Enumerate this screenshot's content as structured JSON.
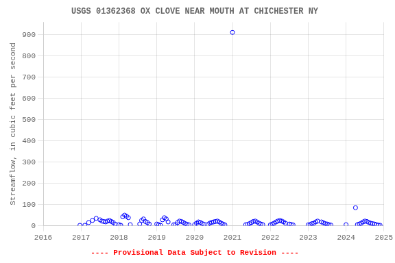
{
  "chart_data": {
    "type": "scatter",
    "title": "USGS 01362368 OX CLOVE NEAR MOUTH AT CHICHESTER NY",
    "ylabel": "Streamflow, in cubic feet per second",
    "annotations": [
      {
        "text": "---- Provisional Data Subject to Revision ----",
        "color": "#ff0000"
      }
    ],
    "xlim": [
      2016,
      2025
    ],
    "ylim": [
      0,
      960
    ],
    "xticks": [
      2016,
      2017,
      2018,
      2019,
      2020,
      2021,
      2022,
      2023,
      2024,
      2025
    ],
    "yticks": [
      0,
      100,
      200,
      300,
      400,
      500,
      600,
      700,
      800,
      900
    ],
    "grid": true,
    "color": "#0000ff",
    "marker": "circle",
    "x": [
      2016.97,
      2017.1,
      2017.2,
      2017.3,
      2017.4,
      2017.5,
      2017.55,
      2017.6,
      2017.65,
      2017.7,
      2017.75,
      2017.8,
      2017.85,
      2017.9,
      2018.0,
      2018.05,
      2018.1,
      2018.15,
      2018.2,
      2018.25,
      2018.3,
      2018.55,
      2018.6,
      2018.65,
      2018.7,
      2018.75,
      2018.8,
      2019.0,
      2019.05,
      2019.1,
      2019.15,
      2019.2,
      2019.25,
      2019.3,
      2019.45,
      2019.5,
      2019.55,
      2019.6,
      2019.65,
      2019.7,
      2019.75,
      2019.8,
      2019.85,
      2020.0,
      2020.05,
      2020.1,
      2020.15,
      2020.2,
      2020.25,
      2020.35,
      2020.4,
      2020.45,
      2020.5,
      2020.55,
      2020.6,
      2020.65,
      2020.7,
      2020.75,
      2020.8,
      2021.0,
      2021.35,
      2021.4,
      2021.45,
      2021.5,
      2021.55,
      2021.6,
      2021.65,
      2021.7,
      2021.75,
      2021.8,
      2022.0,
      2022.05,
      2022.1,
      2022.15,
      2022.2,
      2022.25,
      2022.3,
      2022.35,
      2022.4,
      2022.5,
      2022.55,
      2022.6,
      2023.0,
      2023.05,
      2023.1,
      2023.15,
      2023.2,
      2023.25,
      2023.35,
      2023.4,
      2023.45,
      2023.5,
      2023.55,
      2023.6,
      2024.0,
      2024.25,
      2024.3,
      2024.35,
      2024.4,
      2024.45,
      2024.5,
      2024.55,
      2024.6,
      2024.65,
      2024.7,
      2024.75,
      2024.8,
      2024.85,
      2024.9
    ],
    "values": [
      2,
      2,
      15,
      25,
      35,
      28,
      22,
      20,
      18,
      22,
      25,
      20,
      15,
      8,
      5,
      2,
      42,
      50,
      45,
      38,
      5,
      8,
      25,
      32,
      20,
      15,
      8,
      8,
      5,
      2,
      28,
      38,
      32,
      18,
      5,
      5,
      15,
      22,
      20,
      16,
      10,
      7,
      4,
      5,
      12,
      18,
      16,
      10,
      7,
      6,
      12,
      16,
      18,
      20,
      22,
      18,
      12,
      8,
      4,
      912,
      5,
      6,
      10,
      15,
      20,
      22,
      18,
      12,
      8,
      5,
      4,
      8,
      12,
      18,
      22,
      25,
      22,
      18,
      12,
      8,
      6,
      4,
      4,
      6,
      10,
      12,
      18,
      22,
      18,
      14,
      10,
      8,
      5,
      3,
      5,
      85,
      5,
      8,
      12,
      18,
      22,
      20,
      16,
      12,
      10,
      8,
      5,
      3,
      2
    ]
  }
}
